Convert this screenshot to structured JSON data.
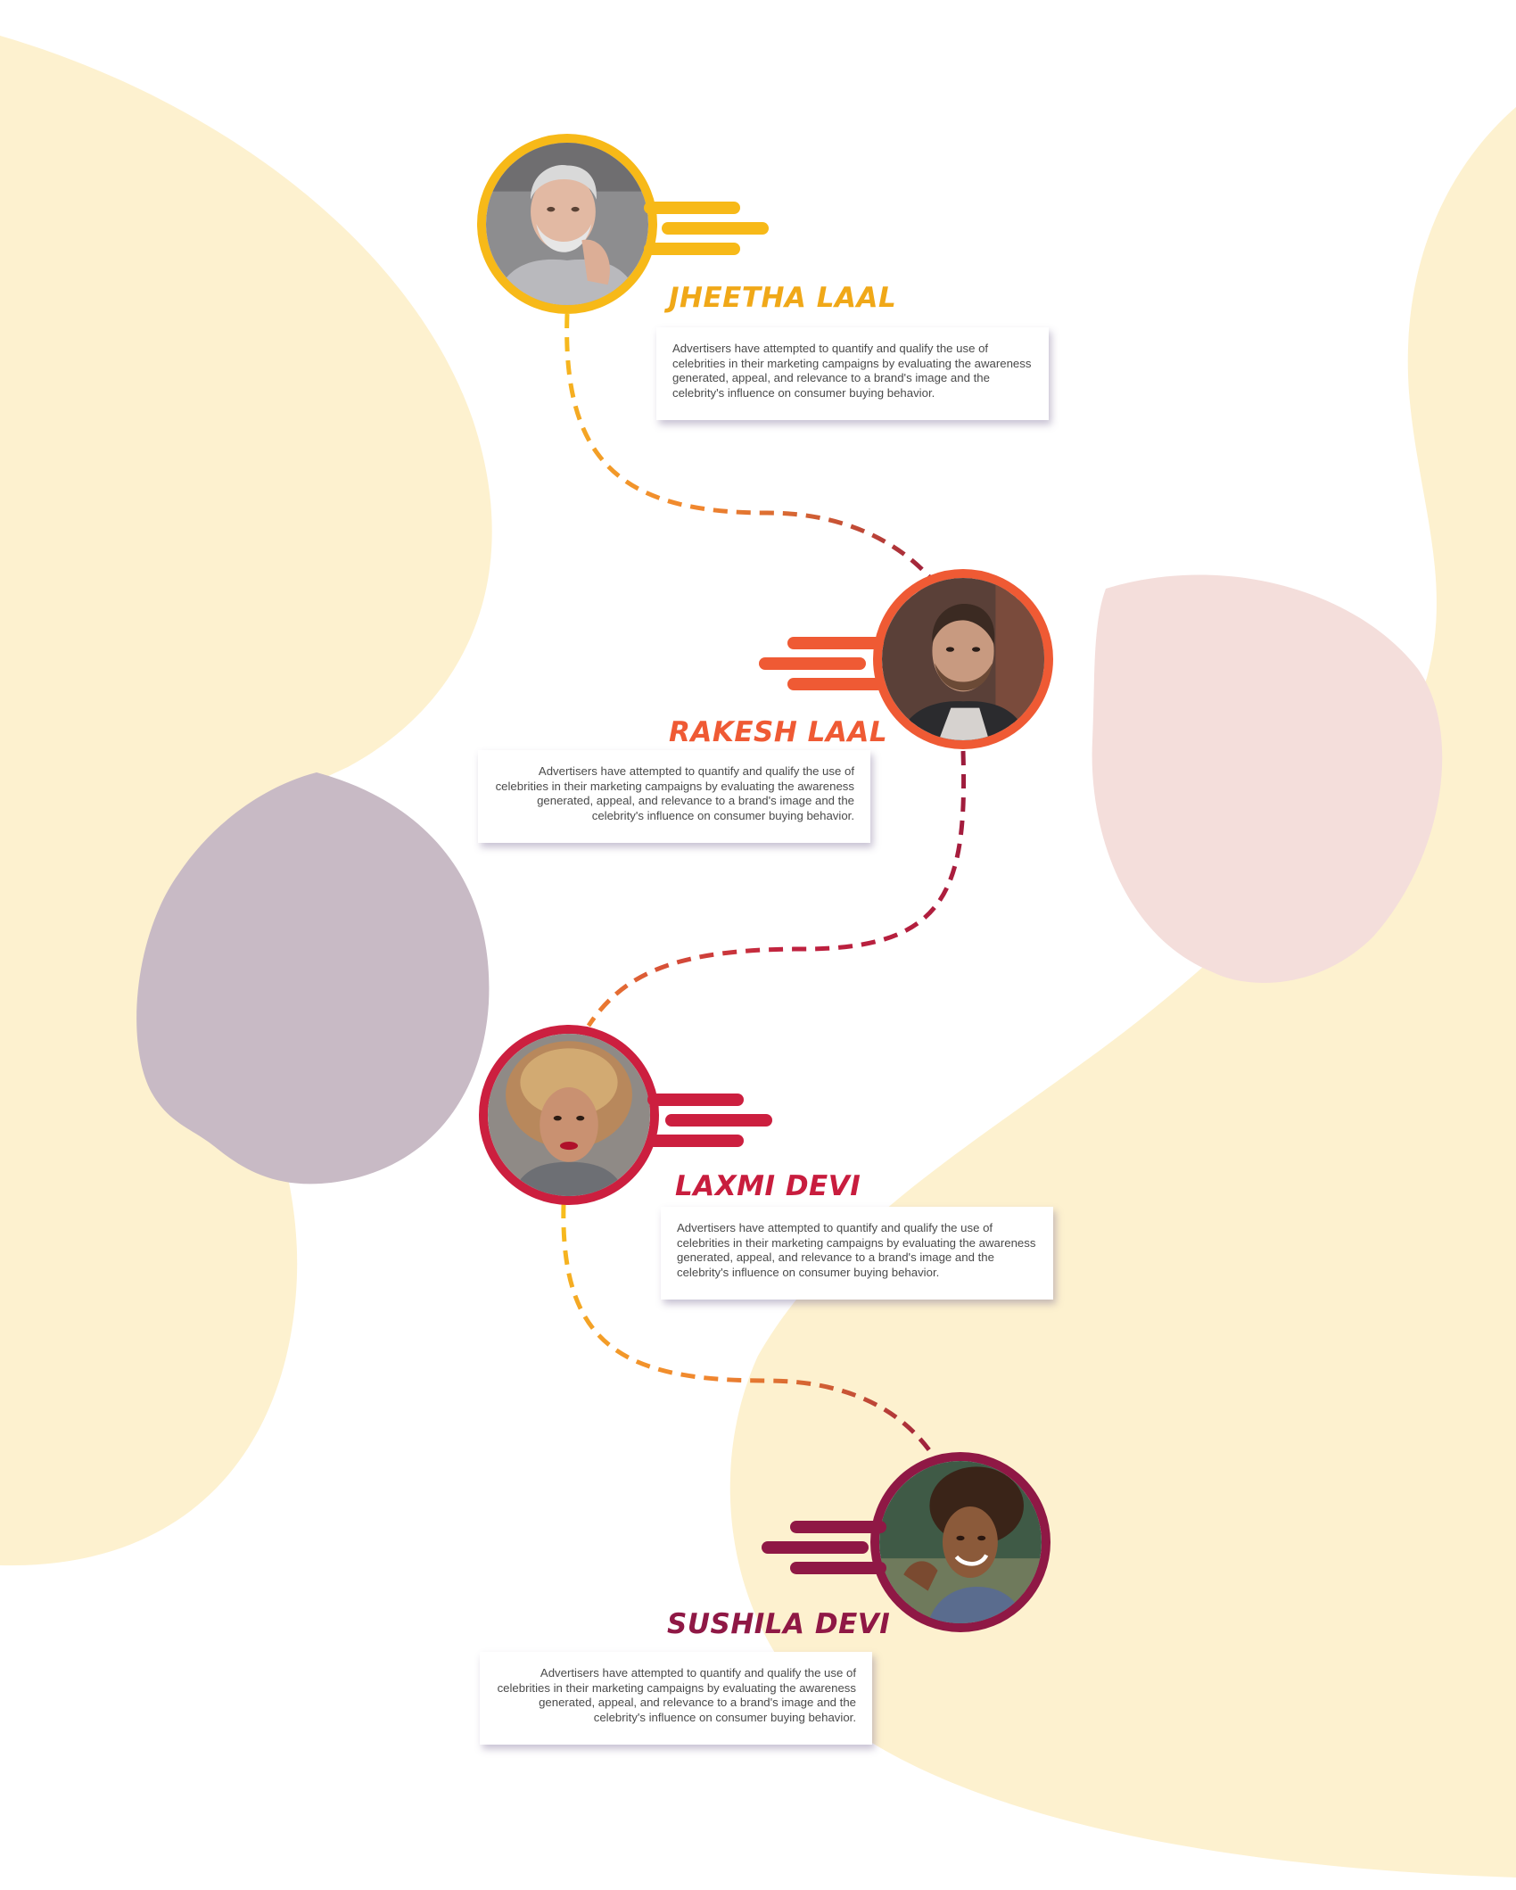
{
  "colors": {
    "background": "#ffffff",
    "blob_yellow": "#fdf1cf",
    "blob_purple": "#c8bac5",
    "blob_pink": "#f4dedb",
    "dash_yellow": "#f7be1c",
    "dash_orange": "#f0862f",
    "dash_maroon": "#9b1b3c",
    "dash_crimson": "#c0213f"
  },
  "timeline": [
    {
      "name": "JHEETHA LAAL",
      "description": "Advertisers have attempted to quantify and qualify the use of celebrities in their marketing campaigns by evaluating the awareness generated, appeal, and relevance to a brand's image and the celebrity's influence on consumer buying behavior.",
      "accent": "#f7b918",
      "name_color": "#f0a818",
      "photo_icon": "portrait-older-bearded-man-icon"
    },
    {
      "name": "RAKESH LAAL",
      "description": "Advertisers have attempted to quantify and qualify the use of celebrities in their marketing campaigns by evaluating the awareness generated, appeal, and relevance to a brand's image and the celebrity's influence on consumer buying behavior.",
      "accent": "#ef5a34",
      "name_color": "#ef5a34",
      "photo_icon": "portrait-young-bearded-man-icon"
    },
    {
      "name": "LAXMI DEVI",
      "description": "Advertisers have attempted to quantify and qualify the use of celebrities in their marketing campaigns by evaluating the awareness generated, appeal, and relevance to a brand's image and the celebrity's influence on consumer buying behavior.",
      "accent": "#cc1f3f",
      "name_color": "#c81d3e",
      "photo_icon": "portrait-woman-curly-hair-icon"
    },
    {
      "name": "SUSHILA DEVI",
      "description": "Advertisers have attempted to quantify and qualify the use of celebrities in their marketing campaigns by evaluating the awareness generated, appeal, and relevance to a brand's image and the celebrity's influence on consumer buying behavior.",
      "accent": "#8f1845",
      "name_color": "#8f1845",
      "photo_icon": "portrait-smiling-woman-afro-icon"
    }
  ]
}
